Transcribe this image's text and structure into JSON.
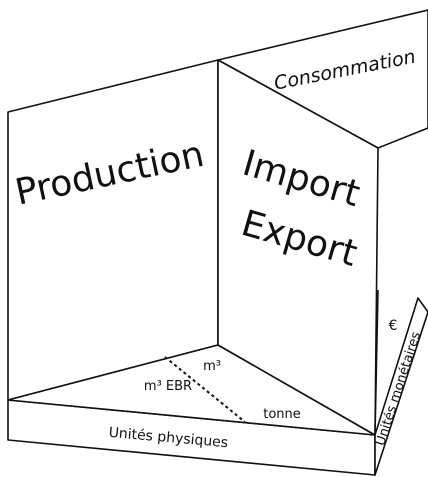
{
  "panels": {
    "left": "Production",
    "middle": [
      "Import",
      "Export"
    ],
    "right": "Consommation"
  },
  "floor": {
    "labels": [
      "m³",
      "m³ EBR",
      "tonne"
    ]
  },
  "axes": {
    "physical": "Unités physiques",
    "monetary": "Unités monétaires",
    "currency": "€"
  }
}
